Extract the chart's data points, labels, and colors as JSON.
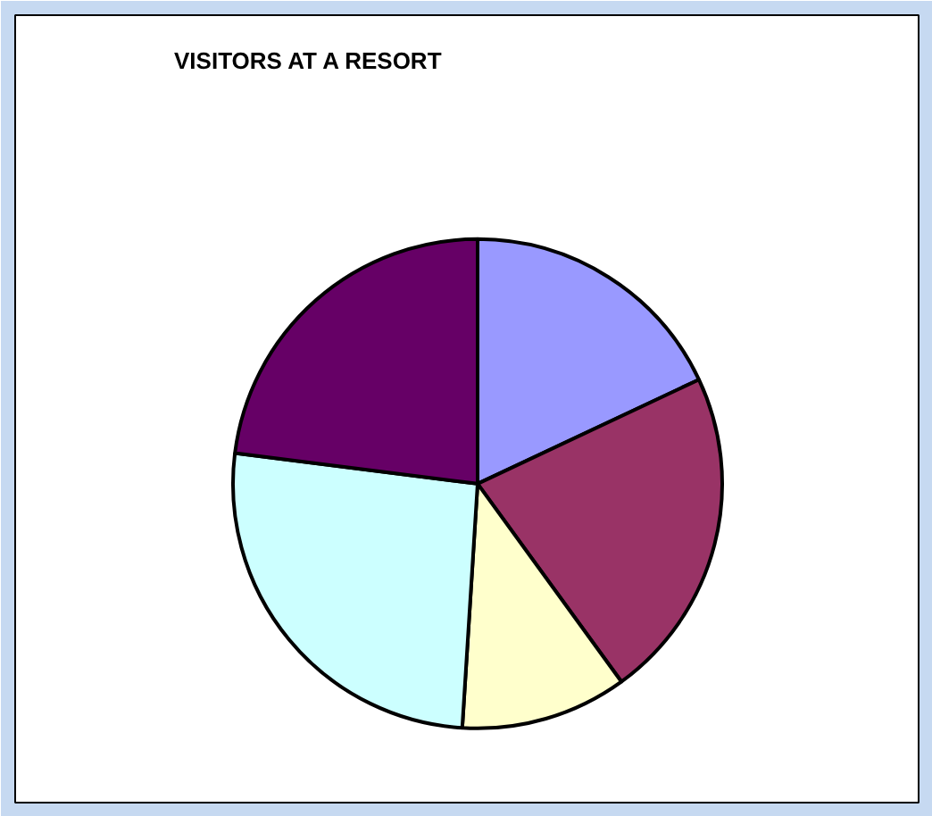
{
  "chart_data": {
    "type": "pie",
    "title": "VISITORS AT A RESORT",
    "categories": [
      null,
      null,
      null,
      null,
      null
    ],
    "values": [
      18,
      22,
      11,
      26,
      23
    ],
    "colors": [
      "#9999ff",
      "#993366",
      "#ffffcc",
      "#ccffff",
      "#660066"
    ]
  }
}
